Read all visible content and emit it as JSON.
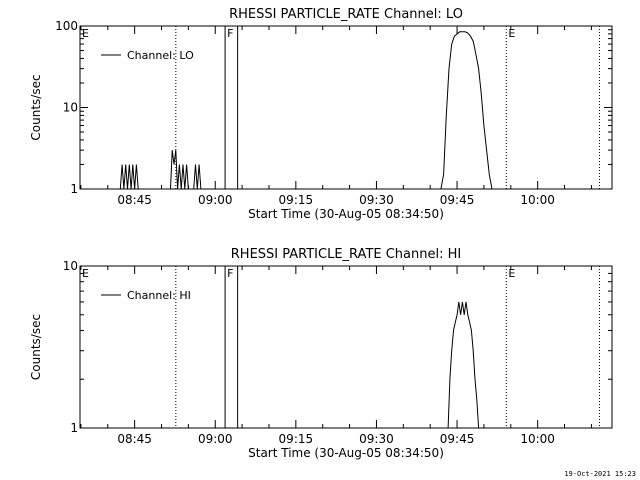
{
  "footer": {
    "timestamp": "19-Oct-2021 15:23"
  },
  "chart_data": [
    {
      "type": "line",
      "title": "RHESSI PARTICLE_RATE Channel: LO",
      "xlabel": "Start Time (30-Aug-05 08:34:50)",
      "ylabel": "Counts/sec",
      "yscale": "log",
      "ylim": [
        1,
        100
      ],
      "xlim": [
        "08:34:50",
        "10:13:50"
      ],
      "xticks": [
        "08:45",
        "09:00",
        "09:15",
        "09:30",
        "09:45",
        "10:00"
      ],
      "yticks": [
        {
          "value": 1,
          "label": "1"
        },
        {
          "value": 10,
          "label": "10"
        },
        {
          "value": 100,
          "label": "100"
        }
      ],
      "grid": false,
      "legend": {
        "placement": "top-left",
        "entries": [
          "Channel: LO"
        ]
      },
      "markers": [
        {
          "label": "E",
          "time": "08:34:50",
          "style": "none"
        },
        {
          "label": "",
          "time": "08:52:40",
          "style": "dotted"
        },
        {
          "label": "F",
          "time": "09:01:50",
          "style": "solid"
        },
        {
          "label": "",
          "time": "09:04:10",
          "style": "solid"
        },
        {
          "label": "E",
          "time": "09:54:10",
          "style": "dotted"
        },
        {
          "label": "",
          "time": "10:11:30",
          "style": "dotted"
        }
      ],
      "series": [
        {
          "name": "Channel: LO",
          "points": [
            [
              "08:42:20",
              1
            ],
            [
              "08:42:40",
              2
            ],
            [
              "08:43:00",
              1
            ],
            [
              "08:43:20",
              2
            ],
            [
              "08:43:40",
              1
            ],
            [
              "08:44:00",
              2
            ],
            [
              "08:44:20",
              1
            ],
            [
              "08:44:40",
              2
            ],
            [
              "08:45:00",
              1
            ],
            [
              "08:45:20",
              2
            ],
            [
              "08:45:40",
              1
            ],
            [
              "08:45:41",
              null
            ],
            [
              "08:51:40",
              1
            ],
            [
              "08:52:00",
              3
            ],
            [
              "08:52:20",
              2
            ],
            [
              "08:52:40",
              3
            ],
            [
              "08:53:00",
              1
            ],
            [
              "08:53:20",
              2
            ],
            [
              "08:53:40",
              1
            ],
            [
              "08:54:00",
              2
            ],
            [
              "08:54:20",
              1
            ],
            [
              "08:54:40",
              2
            ],
            [
              "08:55:00",
              1
            ],
            [
              "08:55:01",
              null
            ],
            [
              "08:56:00",
              1
            ],
            [
              "08:56:20",
              2
            ],
            [
              "08:56:40",
              1
            ],
            [
              "08:57:00",
              2
            ],
            [
              "08:57:20",
              1
            ],
            [
              "08:57:21",
              null
            ],
            [
              "09:42:00",
              1
            ],
            [
              "09:42:30",
              1.5
            ],
            [
              "09:43:00",
              8
            ],
            [
              "09:43:30",
              30
            ],
            [
              "09:44:00",
              60
            ],
            [
              "09:44:30",
              75
            ],
            [
              "09:45:00",
              80
            ],
            [
              "09:45:30",
              85
            ],
            [
              "09:46:00",
              85
            ],
            [
              "09:46:30",
              85
            ],
            [
              "09:47:00",
              82
            ],
            [
              "09:47:30",
              75
            ],
            [
              "09:48:00",
              65
            ],
            [
              "09:48:30",
              45
            ],
            [
              "09:49:00",
              30
            ],
            [
              "09:49:30",
              15
            ],
            [
              "09:50:00",
              6
            ],
            [
              "09:50:30",
              3
            ],
            [
              "09:51:00",
              1.5
            ],
            [
              "09:51:30",
              1
            ]
          ]
        }
      ]
    },
    {
      "type": "line",
      "title": "RHESSI PARTICLE_RATE Channel: HI",
      "xlabel": "Start Time (30-Aug-05 08:34:50)",
      "ylabel": "Counts/sec",
      "yscale": "log",
      "ylim": [
        1,
        10
      ],
      "xlim": [
        "08:34:50",
        "10:13:50"
      ],
      "xticks": [
        "08:45",
        "09:00",
        "09:15",
        "09:30",
        "09:45",
        "10:00"
      ],
      "yticks": [
        {
          "value": 1,
          "label": "1"
        },
        {
          "value": 10,
          "label": "10"
        }
      ],
      "grid": false,
      "legend": {
        "placement": "top-left",
        "entries": [
          "Channel: HI"
        ]
      },
      "markers": [
        {
          "label": "E",
          "time": "08:34:50",
          "style": "none"
        },
        {
          "label": "",
          "time": "08:52:40",
          "style": "dotted"
        },
        {
          "label": "F",
          "time": "09:01:50",
          "style": "solid"
        },
        {
          "label": "",
          "time": "09:04:10",
          "style": "solid"
        },
        {
          "label": "E",
          "time": "09:54:10",
          "style": "dotted"
        },
        {
          "label": "",
          "time": "10:11:30",
          "style": "dotted"
        }
      ],
      "series": [
        {
          "name": "Channel: HI",
          "points": [
            [
              "09:43:20",
              1
            ],
            [
              "09:43:40",
              2
            ],
            [
              "09:44:00",
              3
            ],
            [
              "09:44:20",
              4
            ],
            [
              "09:44:40",
              4.5
            ],
            [
              "09:45:00",
              5
            ],
            [
              "09:45:20",
              6
            ],
            [
              "09:45:40",
              5
            ],
            [
              "09:46:00",
              6
            ],
            [
              "09:46:20",
              5
            ],
            [
              "09:46:40",
              6
            ],
            [
              "09:47:00",
              5
            ],
            [
              "09:47:20",
              4.5
            ],
            [
              "09:47:40",
              4
            ],
            [
              "09:48:00",
              3
            ],
            [
              "09:48:20",
              2
            ],
            [
              "09:48:40",
              1.5
            ],
            [
              "09:49:00",
              1
            ]
          ]
        }
      ]
    }
  ]
}
